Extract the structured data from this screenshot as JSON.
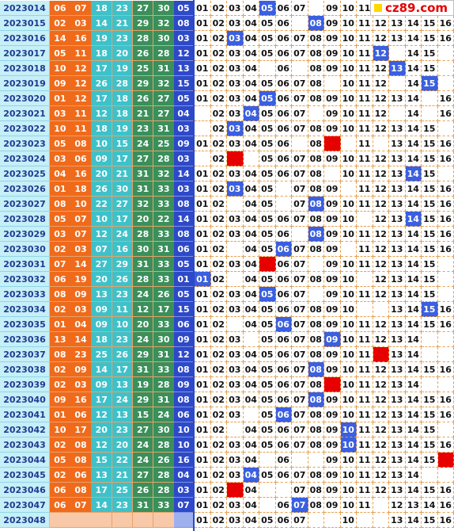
{
  "logo": {
    "text": "cz89.com"
  },
  "colors": {
    "period_bg": "#c6eff7",
    "red_orange": "#f06a1b",
    "red_teal": "#3fc1c9",
    "red_green": "#3a8f5a",
    "blue_ball": "#2e49c8",
    "hit_blue": "#3a5fe0",
    "hit_red": "#e60000"
  },
  "draws": [
    {
      "period": "2023014",
      "red": [
        "06",
        "07",
        "18",
        "23",
        "27",
        "30"
      ],
      "blue": "05"
    },
    {
      "period": "2023015",
      "red": [
        "02",
        "03",
        "14",
        "21",
        "29",
        "32"
      ],
      "blue": "08"
    },
    {
      "period": "2023016",
      "red": [
        "14",
        "16",
        "19",
        "23",
        "28",
        "30"
      ],
      "blue": "03"
    },
    {
      "period": "2023017",
      "red": [
        "05",
        "11",
        "18",
        "20",
        "26",
        "28"
      ],
      "blue": "12"
    },
    {
      "period": "2023018",
      "red": [
        "10",
        "12",
        "17",
        "19",
        "25",
        "31"
      ],
      "blue": "13"
    },
    {
      "period": "2023019",
      "red": [
        "09",
        "12",
        "26",
        "28",
        "29",
        "32"
      ],
      "blue": "15"
    },
    {
      "period": "2023020",
      "red": [
        "01",
        "12",
        "17",
        "18",
        "26",
        "27"
      ],
      "blue": "05"
    },
    {
      "period": "2023021",
      "red": [
        "03",
        "11",
        "12",
        "18",
        "21",
        "27"
      ],
      "blue": "04"
    },
    {
      "period": "2023022",
      "red": [
        "10",
        "11",
        "18",
        "19",
        "23",
        "31"
      ],
      "blue": "03"
    },
    {
      "period": "2023023",
      "red": [
        "05",
        "08",
        "10",
        "15",
        "24",
        "25"
      ],
      "blue": "09"
    },
    {
      "period": "2023024",
      "red": [
        "03",
        "06",
        "09",
        "17",
        "27",
        "28"
      ],
      "blue": "03"
    },
    {
      "period": "2023025",
      "red": [
        "04",
        "16",
        "20",
        "21",
        "31",
        "32"
      ],
      "blue": "14"
    },
    {
      "period": "2023026",
      "red": [
        "01",
        "18",
        "26",
        "30",
        "31",
        "33"
      ],
      "blue": "03"
    },
    {
      "period": "2023027",
      "red": [
        "08",
        "10",
        "22",
        "27",
        "32",
        "33"
      ],
      "blue": "08"
    },
    {
      "period": "2023028",
      "red": [
        "05",
        "07",
        "10",
        "17",
        "20",
        "22"
      ],
      "blue": "14"
    },
    {
      "period": "2023029",
      "red": [
        "03",
        "07",
        "12",
        "24",
        "28",
        "33"
      ],
      "blue": "08"
    },
    {
      "period": "2023030",
      "red": [
        "02",
        "03",
        "07",
        "16",
        "30",
        "31"
      ],
      "blue": "06"
    },
    {
      "period": "2023031",
      "red": [
        "07",
        "14",
        "27",
        "29",
        "31",
        "33"
      ],
      "blue": "05"
    },
    {
      "period": "2023032",
      "red": [
        "06",
        "19",
        "20",
        "26",
        "28",
        "33"
      ],
      "blue": "01"
    },
    {
      "period": "2023033",
      "red": [
        "08",
        "09",
        "13",
        "23",
        "24",
        "26"
      ],
      "blue": "05"
    },
    {
      "period": "2023034",
      "red": [
        "02",
        "03",
        "09",
        "11",
        "12",
        "17"
      ],
      "blue": "15"
    },
    {
      "period": "2023035",
      "red": [
        "01",
        "04",
        "09",
        "10",
        "20",
        "33"
      ],
      "blue": "06"
    },
    {
      "period": "2023036",
      "red": [
        "13",
        "14",
        "18",
        "23",
        "24",
        "30"
      ],
      "blue": "09"
    },
    {
      "period": "2023037",
      "red": [
        "08",
        "23",
        "25",
        "26",
        "29",
        "31"
      ],
      "blue": "12"
    },
    {
      "period": "2023038",
      "red": [
        "02",
        "09",
        "14",
        "17",
        "31",
        "33"
      ],
      "blue": "08"
    },
    {
      "period": "2023039",
      "red": [
        "02",
        "03",
        "09",
        "13",
        "19",
        "28"
      ],
      "blue": "09"
    },
    {
      "period": "2023040",
      "red": [
        "09",
        "16",
        "17",
        "24",
        "29",
        "31"
      ],
      "blue": "08"
    },
    {
      "period": "2023041",
      "red": [
        "01",
        "06",
        "12",
        "13",
        "15",
        "24"
      ],
      "blue": "06"
    },
    {
      "period": "2023042",
      "red": [
        "10",
        "17",
        "20",
        "23",
        "27",
        "30"
      ],
      "blue": "10"
    },
    {
      "period": "2023043",
      "red": [
        "02",
        "08",
        "12",
        "20",
        "24",
        "28"
      ],
      "blue": "10"
    },
    {
      "period": "2023044",
      "red": [
        "05",
        "08",
        "15",
        "22",
        "24",
        "26"
      ],
      "blue": "16"
    },
    {
      "period": "2023045",
      "red": [
        "02",
        "06",
        "13",
        "21",
        "27",
        "28"
      ],
      "blue": "04"
    },
    {
      "period": "2023046",
      "red": [
        "06",
        "08",
        "17",
        "25",
        "26",
        "28"
      ],
      "blue": "03"
    },
    {
      "period": "2023047",
      "red": [
        "06",
        "07",
        "14",
        "23",
        "31",
        "33"
      ],
      "blue": "07"
    },
    {
      "period": "2023048",
      "red": [
        "",
        "",
        "",
        "",
        "",
        ""
      ],
      "blue": ""
    }
  ],
  "trend_rows": [
    [
      "01",
      "02",
      "03",
      "04",
      "05",
      "06",
      "07",
      "",
      "09",
      "10",
      "11",
      "",
      "",
      "",
      "",
      ""
    ],
    [
      "01",
      "02",
      "03",
      "04",
      "05",
      "06",
      "",
      "08",
      "09",
      "10",
      "11",
      "12",
      "13",
      "14",
      "15",
      "16"
    ],
    [
      "01",
      "02",
      "03",
      "04",
      "05",
      "06",
      "07",
      "08",
      "09",
      "10",
      "11",
      "12",
      "13",
      "14",
      "15",
      "16"
    ],
    [
      "01",
      "02",
      "03",
      "04",
      "05",
      "06",
      "07",
      "08",
      "09",
      "10",
      "11",
      "12",
      "",
      "14",
      "15",
      ""
    ],
    [
      "01",
      "02",
      "03",
      "04",
      "",
      "06",
      "",
      "08",
      "09",
      "10",
      "11",
      "12",
      "13",
      "14",
      "15",
      ""
    ],
    [
      "01",
      "02",
      "03",
      "04",
      "05",
      "06",
      "07",
      "08",
      "",
      "10",
      "11",
      "12",
      "",
      "14",
      "15",
      ""
    ],
    [
      "01",
      "02",
      "03",
      "04",
      "05",
      "06",
      "07",
      "08",
      "09",
      "10",
      "11",
      "12",
      "13",
      "14",
      "",
      "16"
    ],
    [
      "",
      "02",
      "03",
      "04",
      "05",
      "06",
      "07",
      "",
      "09",
      "10",
      "11",
      "12",
      "",
      "14",
      "",
      "16"
    ],
    [
      "",
      "02",
      "03",
      "04",
      "05",
      "06",
      "07",
      "08",
      "09",
      "10",
      "11",
      "12",
      "13",
      "14",
      "15",
      ""
    ],
    [
      "01",
      "02",
      "03",
      "04",
      "05",
      "06",
      "",
      "08",
      "",
      "",
      "11",
      "",
      "13",
      "14",
      "15",
      "16"
    ],
    [
      "",
      "02",
      "",
      "",
      "05",
      "06",
      "07",
      "08",
      "09",
      "10",
      "11",
      "12",
      "13",
      "14",
      "15",
      "16"
    ],
    [
      "01",
      "02",
      "03",
      "04",
      "05",
      "06",
      "07",
      "08",
      "",
      "10",
      "11",
      "12",
      "13",
      "14",
      "15",
      ""
    ],
    [
      "01",
      "02",
      "03",
      "04",
      "05",
      "",
      "07",
      "08",
      "09",
      "",
      "11",
      "12",
      "13",
      "14",
      "15",
      "16"
    ],
    [
      "01",
      "02",
      "",
      "04",
      "05",
      "",
      "07",
      "08",
      "09",
      "10",
      "11",
      "12",
      "13",
      "14",
      "15",
      "16"
    ],
    [
      "01",
      "02",
      "03",
      "04",
      "05",
      "06",
      "07",
      "08",
      "09",
      "10",
      "",
      "12",
      "13",
      "14",
      "15",
      "16"
    ],
    [
      "01",
      "02",
      "03",
      "04",
      "05",
      "06",
      "",
      "08",
      "09",
      "10",
      "11",
      "12",
      "13",
      "14",
      "15",
      "16"
    ],
    [
      "01",
      "02",
      "",
      "04",
      "05",
      "06",
      "07",
      "08",
      "09",
      "",
      "11",
      "12",
      "13",
      "14",
      "15",
      "16"
    ],
    [
      "01",
      "02",
      "03",
      "04",
      "",
      "06",
      "07",
      "",
      "09",
      "10",
      "11",
      "12",
      "13",
      "14",
      "15",
      ""
    ],
    [
      "01",
      "02",
      "",
      "04",
      "05",
      "06",
      "07",
      "08",
      "09",
      "10",
      "",
      "12",
      "13",
      "14",
      "15",
      ""
    ],
    [
      "01",
      "02",
      "03",
      "04",
      "05",
      "06",
      "07",
      "",
      "09",
      "10",
      "11",
      "12",
      "13",
      "14",
      "15",
      ""
    ],
    [
      "01",
      "02",
      "03",
      "04",
      "05",
      "06",
      "07",
      "08",
      "09",
      "10",
      "",
      "",
      "13",
      "14",
      "15",
      "16"
    ],
    [
      "01",
      "02",
      "",
      "04",
      "05",
      "06",
      "07",
      "08",
      "09",
      "10",
      "11",
      "12",
      "13",
      "14",
      "15",
      "16"
    ],
    [
      "01",
      "02",
      "03",
      "",
      "05",
      "06",
      "07",
      "08",
      "09",
      "10",
      "11",
      "12",
      "13",
      "14",
      "",
      ""
    ],
    [
      "01",
      "02",
      "03",
      "04",
      "05",
      "06",
      "07",
      "08",
      "09",
      "10",
      "11",
      "",
      "13",
      "14",
      "",
      ""
    ],
    [
      "01",
      "02",
      "03",
      "04",
      "05",
      "06",
      "07",
      "08",
      "09",
      "10",
      "11",
      "12",
      "13",
      "14",
      "15",
      "16"
    ],
    [
      "01",
      "02",
      "03",
      "04",
      "05",
      "06",
      "07",
      "08",
      "",
      "10",
      "11",
      "12",
      "13",
      "14",
      "",
      ""
    ],
    [
      "01",
      "02",
      "03",
      "04",
      "05",
      "06",
      "07",
      "08",
      "09",
      "10",
      "11",
      "12",
      "13",
      "14",
      "15",
      "16"
    ],
    [
      "01",
      "02",
      "03",
      "",
      "05",
      "06",
      "07",
      "08",
      "09",
      "10",
      "11",
      "12",
      "13",
      "14",
      "15",
      "16"
    ],
    [
      "01",
      "02",
      "",
      "04",
      "05",
      "06",
      "07",
      "08",
      "09",
      "10",
      "11",
      "12",
      "13",
      "14",
      "15",
      ""
    ],
    [
      "01",
      "02",
      "03",
      "04",
      "05",
      "06",
      "07",
      "08",
      "09",
      "10",
      "11",
      "12",
      "13",
      "14",
      "15",
      "16"
    ],
    [
      "01",
      "02",
      "03",
      "04",
      "",
      "06",
      "",
      "",
      "09",
      "10",
      "11",
      "12",
      "13",
      "14",
      "15",
      "16"
    ],
    [
      "01",
      "02",
      "03",
      "04",
      "05",
      "06",
      "07",
      "08",
      "09",
      "10",
      "11",
      "12",
      "13",
      "14",
      "",
      ""
    ],
    [
      "01",
      "02",
      "",
      "04",
      "",
      "",
      "07",
      "08",
      "09",
      "10",
      "11",
      "12",
      "13",
      "14",
      "15",
      "16"
    ],
    [
      "01",
      "02",
      "03",
      "04",
      "",
      "06",
      "07",
      "08",
      "09",
      "10",
      "11",
      "",
      "12",
      "13",
      "14",
      "16"
    ],
    [
      "01",
      "02",
      "03",
      "04",
      "05",
      "06",
      "07",
      "",
      "",
      "10",
      "",
      "",
      "13",
      "14",
      "15",
      "16"
    ]
  ],
  "trend_hits": [
    [
      [
        4,
        "b"
      ]
    ],
    [
      [
        7,
        "b"
      ]
    ],
    [
      [
        2,
        "b"
      ]
    ],
    [
      [
        11,
        "b"
      ]
    ],
    [
      [
        12,
        "b"
      ]
    ],
    [
      [
        14,
        "b"
      ]
    ],
    [
      [
        4,
        "b"
      ]
    ],
    [
      [
        3,
        "b"
      ]
    ],
    [
      [
        2,
        "b"
      ]
    ],
    [
      [
        8,
        "r"
      ]
    ],
    [
      [
        2,
        "r"
      ]
    ],
    [
      [
        13,
        "b"
      ]
    ],
    [
      [
        2,
        "b"
      ]
    ],
    [
      [
        7,
        "b"
      ]
    ],
    [
      [
        13,
        "b"
      ]
    ],
    [
      [
        7,
        "b"
      ]
    ],
    [
      [
        5,
        "b"
      ]
    ],
    [
      [
        4,
        "r"
      ]
    ],
    [
      [
        0,
        "b"
      ]
    ],
    [
      [
        4,
        "b"
      ]
    ],
    [
      [
        14,
        "b"
      ]
    ],
    [
      [
        5,
        "b"
      ]
    ],
    [
      [
        8,
        "b"
      ]
    ],
    [
      [
        11,
        "r"
      ]
    ],
    [
      [
        7,
        "b"
      ]
    ],
    [
      [
        8,
        "r"
      ]
    ],
    [
      [
        7,
        "b"
      ]
    ],
    [
      [
        5,
        "b"
      ]
    ],
    [
      [
        9,
        "b"
      ]
    ],
    [
      [
        9,
        "b"
      ]
    ],
    [
      [
        15,
        "r"
      ]
    ],
    [
      [
        3,
        "b"
      ]
    ],
    [
      [
        2,
        "r"
      ]
    ],
    [
      [
        6,
        "b"
      ]
    ],
    []
  ]
}
